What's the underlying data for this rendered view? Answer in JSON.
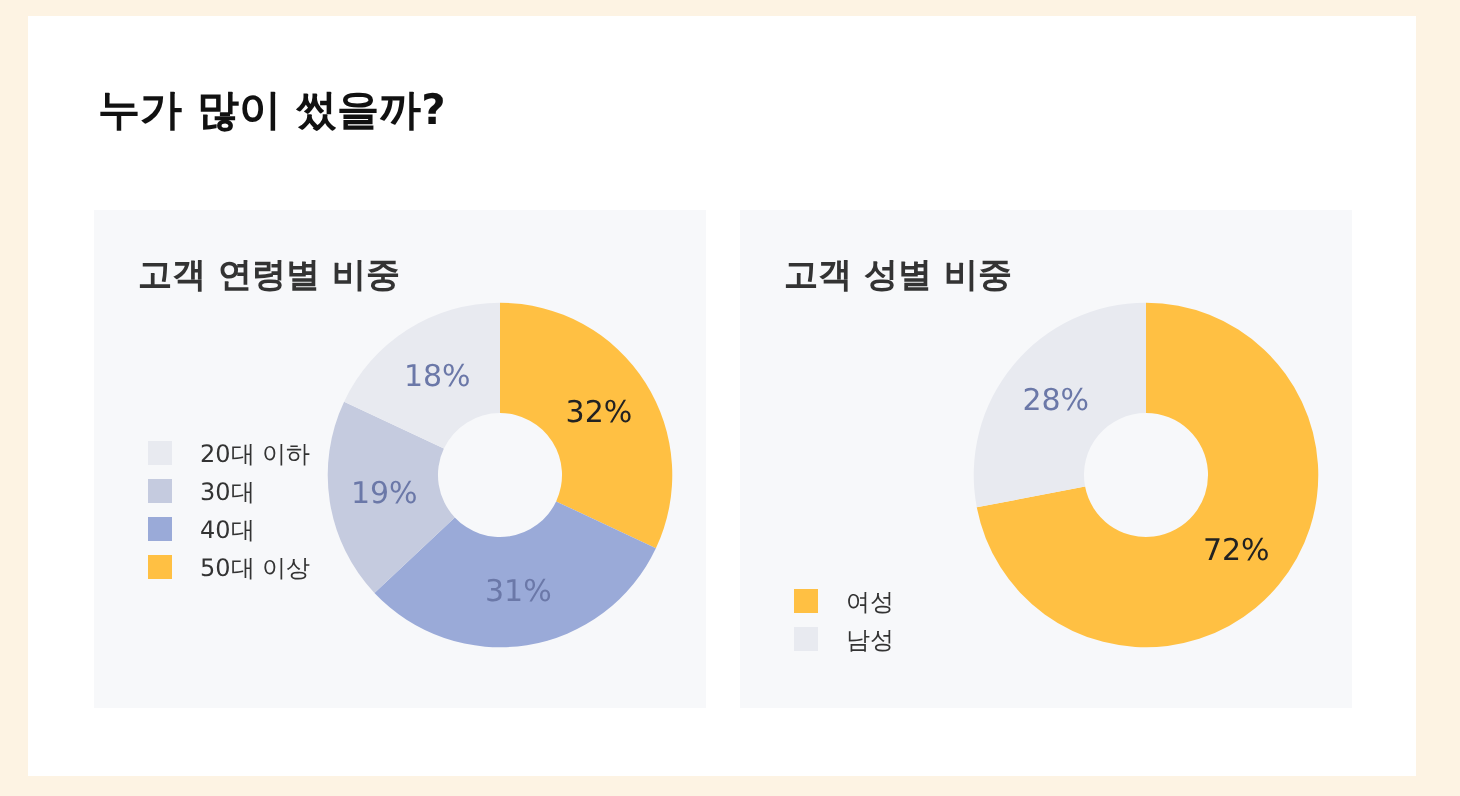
{
  "chart_data": [
    {
      "type": "donut",
      "title": "고객 연령별 비중",
      "annotations": [
        "누가 많이 썼을까?"
      ],
      "categories": [
        "50대 이상",
        "40대",
        "30대",
        "20대 이하"
      ],
      "values": [
        32,
        31,
        19,
        18
      ],
      "value_labels": [
        "32%",
        "31%",
        "19%",
        "18%"
      ],
      "colors": [
        "#ffc043",
        "#9aaad8",
        "#c5cbdf",
        "#e8eaf0"
      ],
      "legend": "left"
    },
    {
      "type": "donut",
      "title": "고객 성별 비중",
      "categories": [
        "여성",
        "남성"
      ],
      "values": [
        72,
        28
      ],
      "value_labels": [
        "72%",
        "28%"
      ],
      "colors": [
        "#ffc043",
        "#e8eaf0"
      ],
      "legend": "left"
    }
  ]
}
